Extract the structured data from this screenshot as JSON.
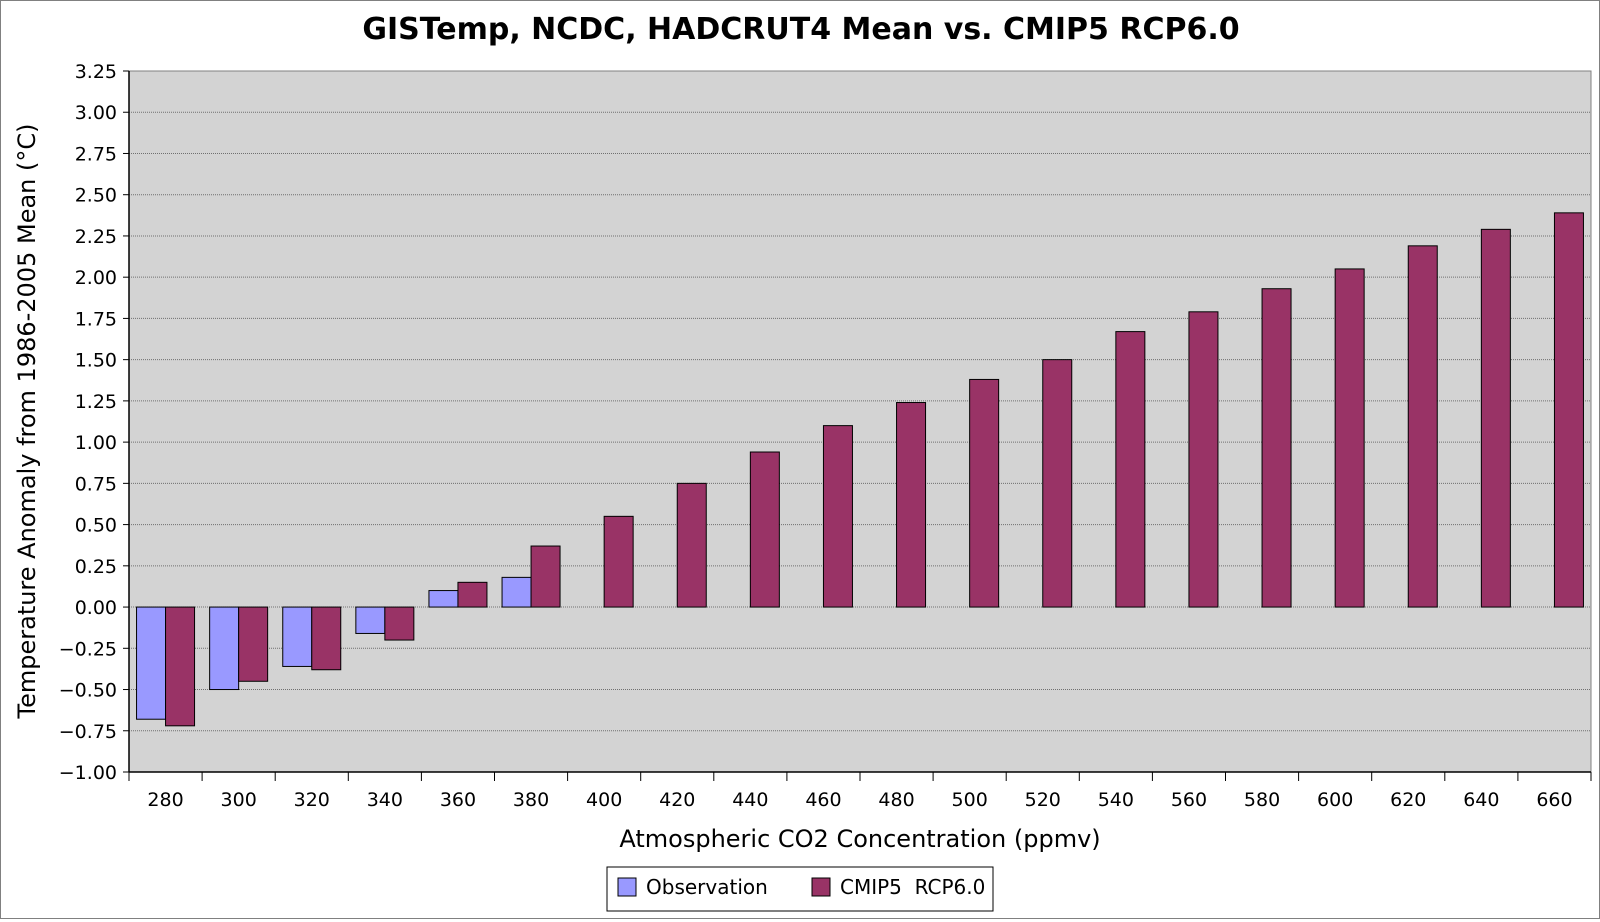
{
  "chart_data": {
    "type": "bar",
    "title": "GISTemp, NCDC, HADCRUT4 Mean vs. CMIP5 RCP6.0",
    "xlabel": "Atmospheric CO2 Concentration (ppmv)",
    "ylabel": "Temperature Anomaly from 1986-2005 Mean (°C)",
    "ylim": [
      -1.0,
      3.25
    ],
    "yticks": [
      "3.25",
      "3.00",
      "2.75",
      "2.50",
      "2.25",
      "2.00",
      "1.75",
      "1.50",
      "1.25",
      "1.00",
      "0.75",
      "0.50",
      "0.25",
      "0.00",
      "−0.25",
      "−0.50",
      "−0.75",
      "−1.00"
    ],
    "grid": true,
    "legend_position": "bottom-center",
    "categories": [
      "280",
      "300",
      "320",
      "340",
      "360",
      "380",
      "400",
      "420",
      "440",
      "460",
      "480",
      "500",
      "520",
      "540",
      "560",
      "580",
      "600",
      "620",
      "640",
      "660"
    ],
    "series": [
      {
        "name": "Observation",
        "color": "#9999ff",
        "values": [
          -0.68,
          -0.5,
          -0.36,
          -0.16,
          0.1,
          0.18,
          null,
          null,
          null,
          null,
          null,
          null,
          null,
          null,
          null,
          null,
          null,
          null,
          null,
          null
        ]
      },
      {
        "name": "CMIP5  RCP6.0",
        "color": "#993366",
        "values": [
          -0.72,
          -0.45,
          -0.38,
          -0.2,
          0.15,
          0.37,
          0.55,
          0.75,
          0.94,
          1.1,
          1.24,
          1.38,
          1.5,
          1.67,
          1.79,
          1.93,
          2.05,
          2.19,
          2.29,
          2.39
        ]
      }
    ]
  }
}
